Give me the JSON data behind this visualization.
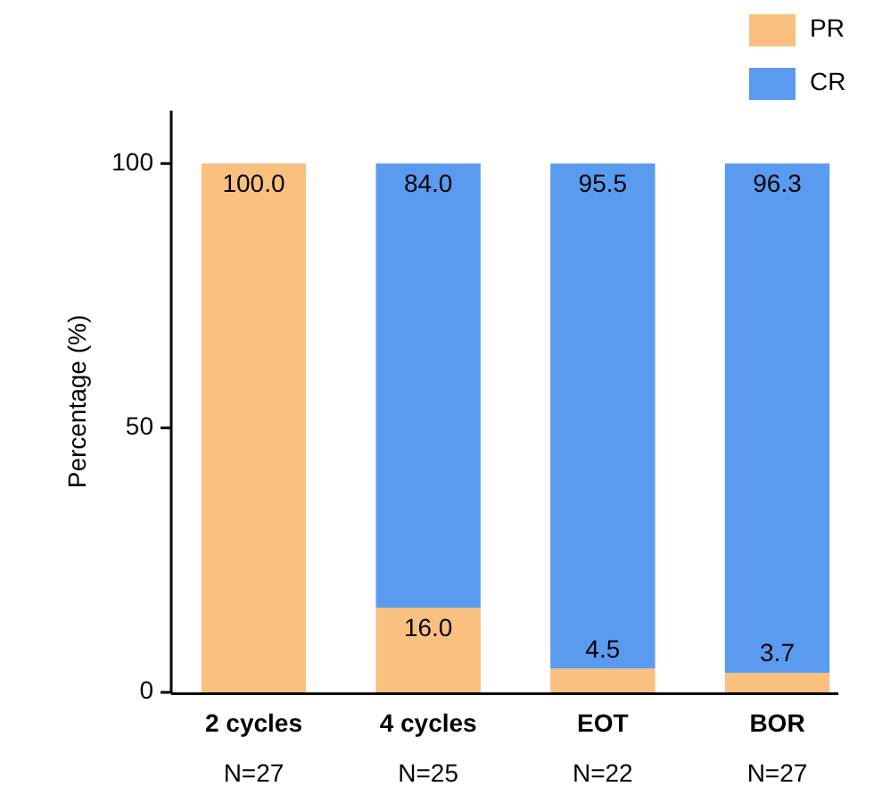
{
  "chart_data": {
    "type": "bar",
    "stacked": true,
    "ylabel": "Percentage (%)",
    "categories": [
      "2 cycles\nN=27",
      "4 cycles\nN=25",
      "EOT\nN=22",
      "BOR\nN=27"
    ],
    "series": [
      {
        "name": "PR",
        "color": "#f9c07f",
        "values": [
          100,
          16,
          4.5,
          3.7
        ],
        "value_labels": [
          "100.0",
          "16.0",
          "4.5",
          "3.7"
        ]
      },
      {
        "name": "CR",
        "color": "#5b9bef",
        "values": [
          0,
          84,
          95.5,
          96.3
        ],
        "value_labels": [
          null,
          "84.0",
          "95.5",
          "96.3"
        ]
      }
    ],
    "ylim": [
      0,
      110
    ],
    "yticks": [
      0,
      50,
      100
    ],
    "legend": "top right",
    "grid": false
  }
}
